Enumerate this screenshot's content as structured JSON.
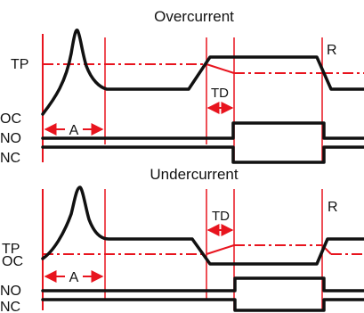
{
  "overcurrent": {
    "title": "Overcurrent",
    "labels": {
      "tp": "TP",
      "oc": "OC",
      "no": "NO",
      "nc": "NC",
      "a": "A",
      "td": "TD",
      "r": "R"
    }
  },
  "undercurrent": {
    "title": "Undercurrent",
    "labels": {
      "tp": "TP",
      "oc": "OC",
      "no": "NO",
      "nc": "NC",
      "a": "A",
      "td": "TD",
      "r": "R"
    }
  },
  "colors": {
    "marker": "#e8141e",
    "trace": "#111111"
  }
}
